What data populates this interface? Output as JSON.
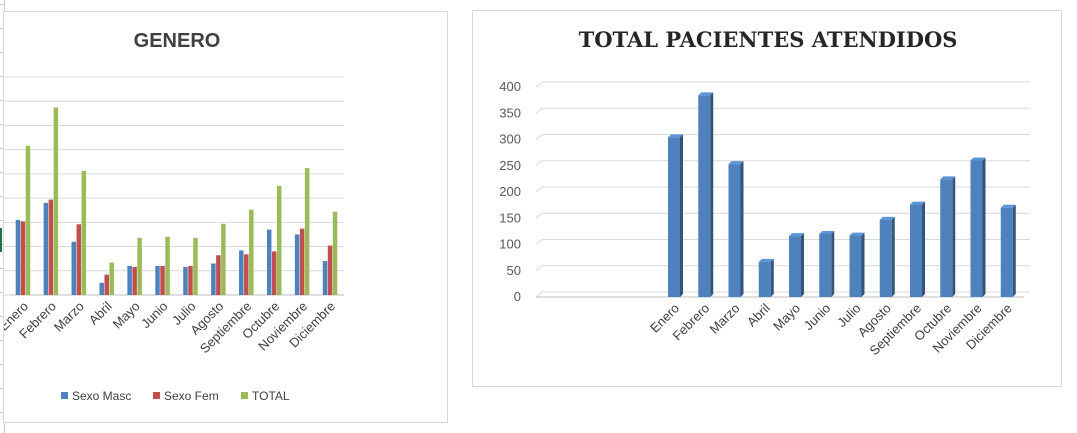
{
  "chart_data": [
    {
      "type": "bar",
      "title": "GENERO",
      "categories": [
        "Enero",
        "Febrero",
        "Marzo",
        "Abril",
        "Mayo",
        "Junio",
        "Julio",
        "Agosto",
        "Septiembre",
        "Octubre",
        "Noviembre",
        "Diciembre"
      ],
      "series": [
        {
          "name": "Sexo Masc",
          "color": "#4f81bd",
          "values": [
            155,
            190,
            110,
            25,
            60,
            60,
            58,
            65,
            92,
            135,
            125,
            70
          ]
        },
        {
          "name": "Sexo Fem",
          "color": "#c0504d",
          "values": [
            152,
            197,
            146,
            42,
            58,
            60,
            60,
            82,
            84,
            90,
            137,
            102
          ]
        },
        {
          "name": "TOTAL",
          "color": "#9bbb59",
          "values": [
            308,
            387,
            256,
            67,
            118,
            120,
            118,
            147,
            176,
            225,
            262,
            172
          ]
        }
      ],
      "ylim": [
        0,
        450
      ],
      "grid": true,
      "legend": "bottom"
    },
    {
      "type": "bar",
      "title": "TOTAL PACIENTES ATENDIDOS",
      "categories": [
        "Enero",
        "Febrero",
        "Marzo",
        "Abril",
        "Mayo",
        "Junio",
        "Julio",
        "Agosto",
        "Septiembre",
        "Octubre",
        "Noviembre",
        "Diciembre"
      ],
      "values": [
        304,
        384,
        253,
        67,
        116,
        120,
        117,
        147,
        176,
        224,
        260,
        170
      ],
      "ylim": [
        0,
        400
      ],
      "yticks": [
        "0",
        "50",
        "100",
        "150",
        "200",
        "250",
        "300",
        "350",
        "400"
      ],
      "color": "#4f81bd",
      "grid": true
    }
  ]
}
